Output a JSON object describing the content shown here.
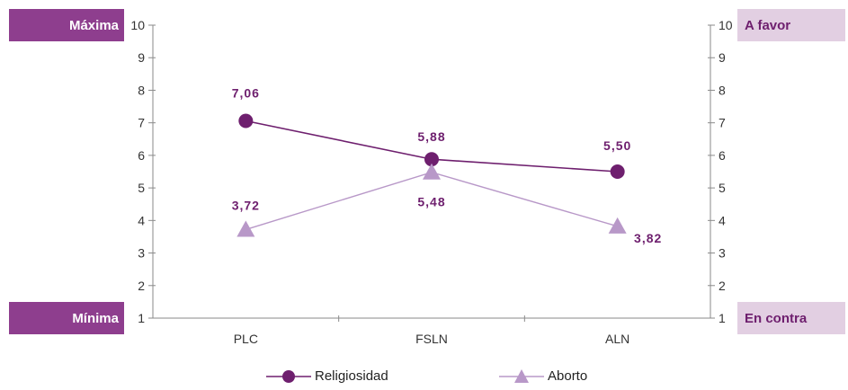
{
  "chart_data": {
    "type": "line",
    "categories": [
      "PLC",
      "FSLN",
      "ALN"
    ],
    "ylim": [
      1,
      10
    ],
    "yticks": [
      "1",
      "2",
      "3",
      "4",
      "5",
      "6",
      "7",
      "8",
      "9",
      "10"
    ],
    "series": [
      {
        "name": "Religiosidad",
        "values": [
          7.06,
          5.88,
          5.5
        ],
        "labels": [
          "7,06",
          "5,88",
          "5,50"
        ],
        "color": "#6e1f6e",
        "marker": "circle"
      },
      {
        "name": "Aborto",
        "values": [
          3.72,
          5.48,
          3.82
        ],
        "labels": [
          "3,72",
          "5,48",
          "3,82"
        ],
        "color": "#b898c8",
        "marker": "triangle"
      }
    ],
    "left_axis": {
      "top_label": "Máxima",
      "bottom_label": "Mínima"
    },
    "right_axis": {
      "top_label": "A favor",
      "bottom_label": "En contra"
    },
    "legend_position": "bottom"
  }
}
